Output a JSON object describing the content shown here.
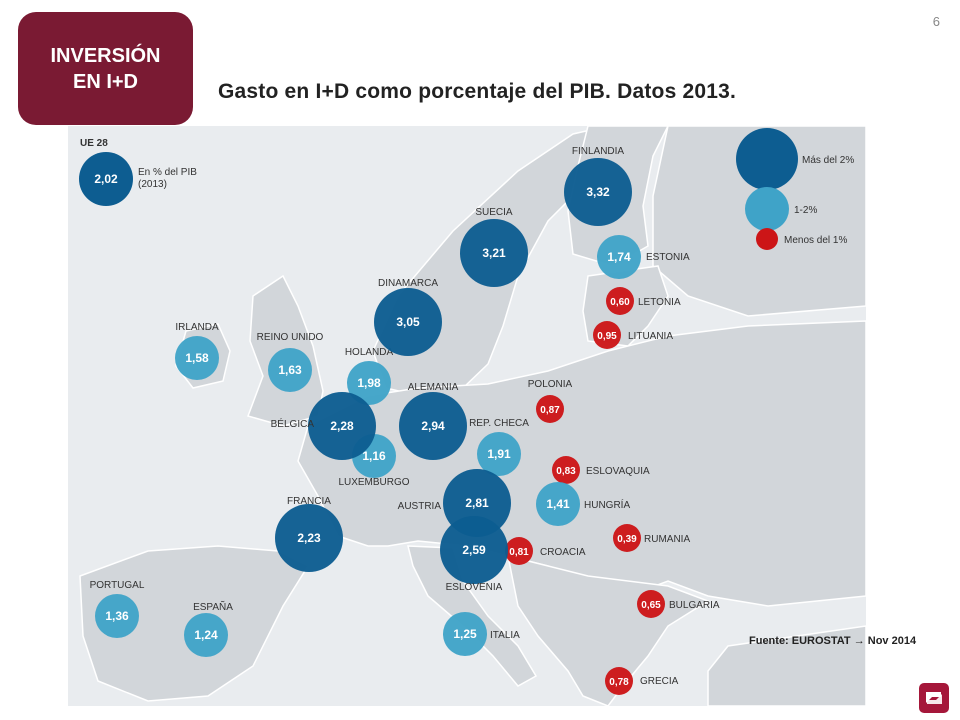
{
  "page_number": "6",
  "section_tab": {
    "line1": "INVERSIÓN",
    "line2": "EN I+D"
  },
  "title": "Gasto en I+D como porcentaje del PIB. Datos 2013.",
  "source": "Fuente: EUROSTAT → Nov 2014",
  "colors": {
    "high": "#0d5d91",
    "mid": "#3fa3c8",
    "low": "#cc1517",
    "tab": "#7a1a33"
  },
  "legend": {
    "eu_name": "UE 28",
    "eu_value": "2,02",
    "eu_note_1": "En % del PIB",
    "eu_note_2": "(2013)",
    "high": "Más del 2%",
    "mid": "1-2%",
    "low": "Menos del 1%"
  },
  "chart_data": {
    "type": "bubble-map",
    "title": "Gasto en I+D como porcentaje del PIB. Datos 2013.",
    "unit": "% del PIB",
    "year": "2013",
    "categories": [
      "Más del 2%",
      "1-2%",
      "Menos del 1%"
    ],
    "countries": [
      {
        "name": "FINLANDIA",
        "value": 3.32,
        "label": "3,32",
        "category": "high"
      },
      {
        "name": "SUECIA",
        "value": 3.21,
        "label": "3,21",
        "category": "high"
      },
      {
        "name": "DINAMARCA",
        "value": 3.05,
        "label": "3,05",
        "category": "high"
      },
      {
        "name": "ALEMANIA",
        "value": 2.94,
        "label": "2,94",
        "category": "high"
      },
      {
        "name": "AUSTRIA",
        "value": 2.81,
        "label": "2,81",
        "category": "high"
      },
      {
        "name": "ESLOVENIA",
        "value": 2.59,
        "label": "2,59",
        "category": "high"
      },
      {
        "name": "BÉLGICA",
        "value": 2.28,
        "label": "2,28",
        "category": "high"
      },
      {
        "name": "FRANCIA",
        "value": 2.23,
        "label": "2,23",
        "category": "high"
      },
      {
        "name": "HOLANDA",
        "value": 1.98,
        "label": "1,98",
        "category": "mid"
      },
      {
        "name": "REP. CHECA",
        "value": 1.91,
        "label": "1,91",
        "category": "mid"
      },
      {
        "name": "ESTONIA",
        "value": 1.74,
        "label": "1,74",
        "category": "mid"
      },
      {
        "name": "REINO UNIDO",
        "value": 1.63,
        "label": "1,63",
        "category": "mid"
      },
      {
        "name": "IRLANDA",
        "value": 1.58,
        "label": "1,58",
        "category": "mid"
      },
      {
        "name": "HUNGRÍA",
        "value": 1.41,
        "label": "1,41",
        "category": "mid"
      },
      {
        "name": "PORTUGAL",
        "value": 1.36,
        "label": "1,36",
        "category": "mid"
      },
      {
        "name": "ITALIA",
        "value": 1.25,
        "label": "1,25",
        "category": "mid"
      },
      {
        "name": "ESPAÑA",
        "value": 1.24,
        "label": "1,24",
        "category": "mid"
      },
      {
        "name": "LUXEMBURGO",
        "value": 1.16,
        "label": "1,16",
        "category": "mid"
      },
      {
        "name": "LITUANIA",
        "value": 0.95,
        "label": "0,95",
        "category": "low"
      },
      {
        "name": "POLONIA",
        "value": 0.87,
        "label": "0,87",
        "category": "low"
      },
      {
        "name": "ESLOVAQUIA",
        "value": 0.83,
        "label": "0,83",
        "category": "low"
      },
      {
        "name": "CROACIA",
        "value": 0.81,
        "label": "0,81",
        "category": "low"
      },
      {
        "name": "GRECIA",
        "value": 0.78,
        "label": "0,78",
        "category": "low"
      },
      {
        "name": "BULGARIA",
        "value": 0.65,
        "label": "0,65",
        "category": "low"
      },
      {
        "name": "LETONIA",
        "value": 0.6,
        "label": "0,60",
        "category": "low"
      },
      {
        "name": "RUMANIA",
        "value": 0.39,
        "label": "0,39",
        "category": "low"
      }
    ]
  }
}
